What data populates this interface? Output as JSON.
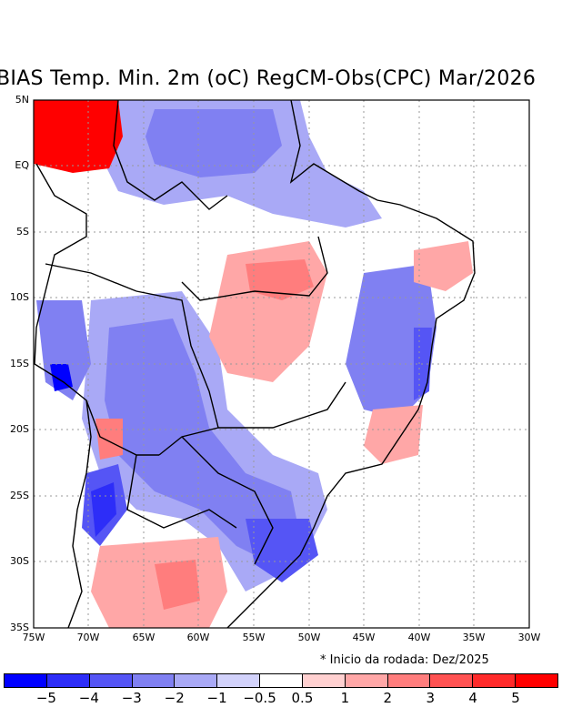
{
  "title": "BIAS Temp. Min. 2m (oC) RegCM-Obs(CPC) Mar/2026",
  "note": "* Inicio da rodada: Dez/2025",
  "lat_labels": [
    "5N",
    "EQ",
    "5S",
    "10S",
    "15S",
    "20S",
    "25S",
    "30S",
    "35S"
  ],
  "lon_labels": [
    "75W",
    "70W",
    "65W",
    "60W",
    "55W",
    "50W",
    "45W",
    "40W",
    "35W",
    "30W"
  ],
  "colorbar": {
    "colors": [
      "#0000ff",
      "#2d2df8",
      "#5555f5",
      "#8080f2",
      "#a9a9f6",
      "#d2d2fb",
      "#ffffff",
      "#ffd0d0",
      "#ffa7a7",
      "#ff7d7d",
      "#ff5252",
      "#ff2a2a",
      "#ff0000"
    ],
    "labels": [
      "−5",
      "−4",
      "−3",
      "−2",
      "−1",
      "−0.5",
      "0.5",
      "1",
      "2",
      "3",
      "4",
      "5"
    ]
  }
}
